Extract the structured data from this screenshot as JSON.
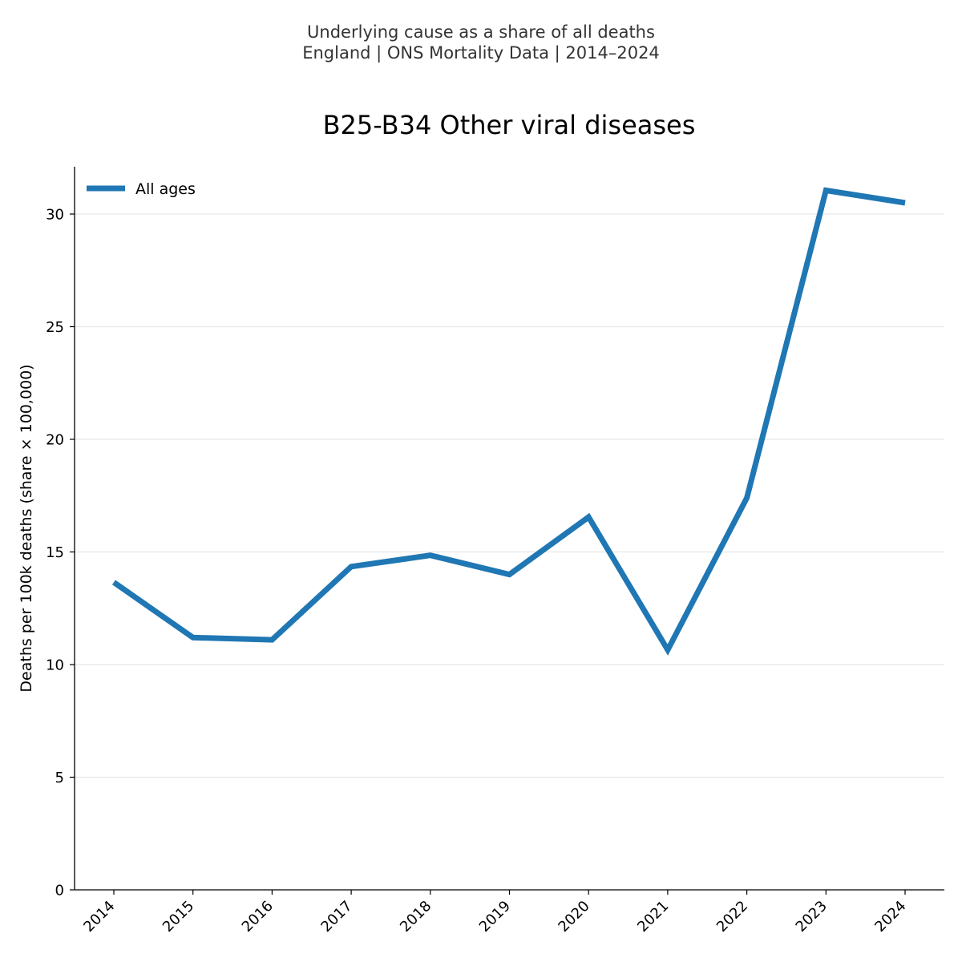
{
  "chart_data": {
    "type": "line",
    "suptitle_line1": "Underlying cause as a share of all deaths",
    "suptitle_line2": "England | ONS Mortality Data | 2014–2024",
    "title": "B25-B34 Other viral diseases",
    "xlabel": "",
    "ylabel": "Deaths per 100k deaths (share × 100,000)",
    "categories": [
      "2014",
      "2015",
      "2016",
      "2017",
      "2018",
      "2019",
      "2020",
      "2021",
      "2022",
      "2023",
      "2024"
    ],
    "series": [
      {
        "name": "All ages",
        "color": "#1f77b4",
        "values": [
          13.65,
          11.2,
          11.1,
          14.35,
          14.85,
          14.0,
          16.55,
          10.65,
          17.4,
          31.05,
          30.5
        ]
      }
    ],
    "ylim": [
      0,
      32.1
    ],
    "yticks": [
      0,
      5,
      10,
      15,
      20,
      25,
      30
    ],
    "grid": "horizontal",
    "legend_position": "top-left",
    "gridline_color": "#e6e6e6"
  }
}
